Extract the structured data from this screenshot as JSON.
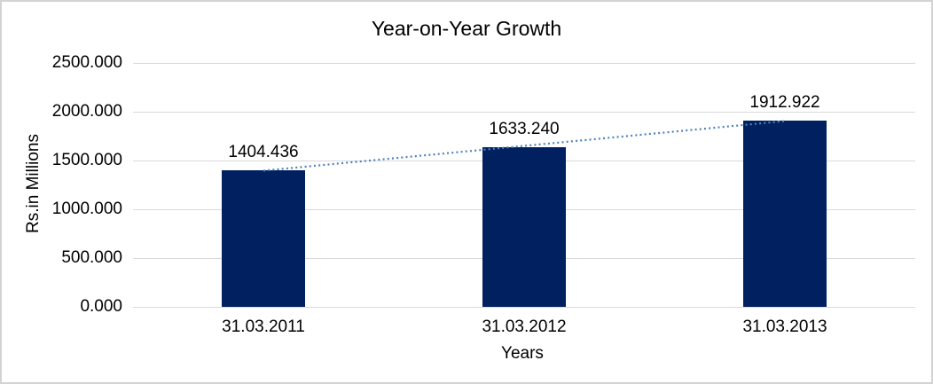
{
  "chart_data": {
    "type": "bar",
    "title": "Year-on-Year Growth",
    "xlabel": "Years",
    "ylabel": "Rs.in Millions",
    "categories": [
      "31.03.2011",
      "31.03.2012",
      "31.03.2013"
    ],
    "values": [
      1404.436,
      1633.24,
      1912.922
    ],
    "data_labels": [
      "1404.436",
      "1633.240",
      "1912.922"
    ],
    "ylim": [
      0,
      2500
    ],
    "ytick_values": [
      0,
      500,
      1000,
      1500,
      2000,
      2500
    ],
    "ytick_labels": [
      "0.000",
      "500.000",
      "1000.000",
      "1500.000",
      "2000.000",
      "2500.000"
    ],
    "grid": true,
    "legend": "none",
    "bar_color": "#002060",
    "gridline_color": "#d9d9d9",
    "trendline": {
      "type": "linear",
      "style": "dotted",
      "color": "#4f81bd"
    }
  }
}
